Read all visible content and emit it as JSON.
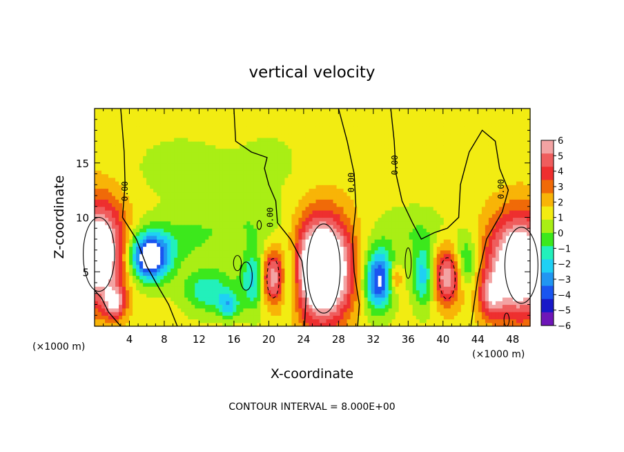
{
  "chart_data": {
    "type": "heatmap",
    "title": "vertical velocity",
    "xlabel": "X-coordinate",
    "ylabel": "Z-coordinate",
    "x_unit_label": "(×1000 m)",
    "footer": "CONTOUR INTERVAL = 8.000E+00",
    "xlim": [
      0,
      50
    ],
    "ylim": [
      0,
      20
    ],
    "x_ticks": [
      4,
      8,
      12,
      16,
      20,
      24,
      28,
      32,
      36,
      40,
      44,
      48
    ],
    "y_ticks": [
      5,
      10,
      15
    ],
    "colorbar": {
      "ticks": [
        6,
        5,
        4,
        3,
        2,
        1,
        0,
        -1,
        -2,
        -3,
        -4,
        -5,
        -6
      ],
      "tick_labels": [
        "6",
        "5",
        "4",
        "3",
        "2",
        "1",
        "0",
        "−1",
        "−2",
        "−3",
        "−4",
        "−5",
        "−6"
      ],
      "colors": [
        "#f3a3a3",
        "#ef5d5d",
        "#ee2f2f",
        "#f06a08",
        "#f8b407",
        "#f2ec12",
        "#a9ee15",
        "#3ce81c",
        "#22f0bb",
        "#1fd0f4",
        "#2196f2",
        "#1a55f0",
        "#1818c8",
        "#6e16b8"
      ]
    },
    "contour_labels": [
      "0.00",
      "0.00",
      "0.00",
      "0.00",
      "0.00"
    ],
    "background_value": 0.4,
    "features": [
      {
        "kind": "updraft",
        "x": 0.5,
        "z": 6.8,
        "rx": 3.0,
        "rz": 4.6,
        "amp": 8.5
      },
      {
        "kind": "updraft",
        "x": 2.3,
        "z": 2.2,
        "rx": 1.2,
        "rz": 1.4,
        "amp": 4.5
      },
      {
        "kind": "updraft",
        "x": 26.2,
        "z": 5.3,
        "rx": 3.2,
        "rz": 4.6,
        "amp": 11.0
      },
      {
        "kind": "updraft",
        "x": 48.8,
        "z": 5.6,
        "rx": 3.6,
        "rz": 4.6,
        "amp": 9.0
      },
      {
        "kind": "updraft",
        "x": 45.5,
        "z": 2.8,
        "rx": 1.4,
        "rz": 2.0,
        "amp": 3.5
      },
      {
        "kind": "updraft",
        "x": 20.3,
        "z": 4.5,
        "rx": 1.6,
        "rz": 2.4,
        "amp": 6.0
      },
      {
        "kind": "updraft",
        "x": 40.4,
        "z": 4.6,
        "rx": 2.1,
        "rz": 2.6,
        "amp": 5.5
      },
      {
        "kind": "updraft",
        "x": 34.5,
        "z": 4.4,
        "rx": 0.7,
        "rz": 1.1,
        "amp": 3.0
      },
      {
        "kind": "downdraft",
        "x": 6.3,
        "z": 6.3,
        "rx": 2.3,
        "rz": 2.1,
        "amp": -8.0
      },
      {
        "kind": "downdraft",
        "x": 13.2,
        "z": 3.3,
        "rx": 3.0,
        "rz": 2.0,
        "amp": -3.3
      },
      {
        "kind": "downdraft",
        "x": 15.4,
        "z": 1.9,
        "rx": 1.2,
        "rz": 1.1,
        "amp": -3.2
      },
      {
        "kind": "downdraft",
        "x": 18.5,
        "z": 4.4,
        "rx": 1.5,
        "rz": 2.8,
        "amp": -4.6
      },
      {
        "kind": "downdraft",
        "x": 22.3,
        "z": 4.6,
        "rx": 1.1,
        "rz": 3.0,
        "amp": -3.8
      },
      {
        "kind": "downdraft",
        "x": 32.6,
        "z": 4.3,
        "rx": 1.6,
        "rz": 2.8,
        "amp": -6.8
      },
      {
        "kind": "downdraft",
        "x": 37.9,
        "z": 4.6,
        "rx": 1.3,
        "rz": 2.8,
        "amp": -4.8
      },
      {
        "kind": "downdraft",
        "x": 42.6,
        "z": 5.6,
        "rx": 1.3,
        "rz": 2.6,
        "amp": -3.8
      },
      {
        "kind": "downdraft",
        "x": 9.5,
        "z": 8.0,
        "rx": 5.0,
        "rz": 2.2,
        "amp": -1.6
      },
      {
        "kind": "downdraft",
        "x": 17.5,
        "z": 9.6,
        "rx": 5.5,
        "rz": 2.4,
        "amp": -1.2
      },
      {
        "kind": "downdraft",
        "x": 36.5,
        "z": 8.8,
        "rx": 4.0,
        "rz": 2.6,
        "amp": -1.3
      },
      {
        "kind": "downdraft",
        "x": 10.0,
        "z": 14.5,
        "rx": 5.5,
        "rz": 3.0,
        "amp": -0.9
      },
      {
        "kind": "downdraft",
        "x": 20.0,
        "z": 15.0,
        "rx": 4.0,
        "rz": 3.0,
        "amp": -0.7
      },
      {
        "kind": "updraft",
        "x": 36.5,
        "z": 14.5,
        "rx": 6.0,
        "rz": 3.5,
        "amp": 0.4
      },
      {
        "kind": "updraft",
        "x": 48.5,
        "z": 18.0,
        "rx": 3.0,
        "rz": 2.0,
        "amp": 0.4
      }
    ]
  }
}
